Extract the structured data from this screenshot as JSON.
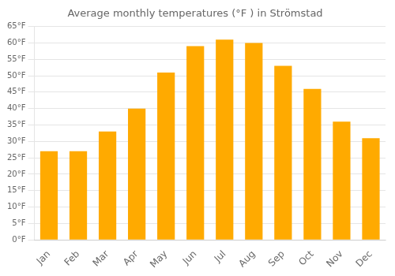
{
  "chart_data": {
    "type": "bar",
    "title": "Average monthly temperatures (°F ) in Strömstad",
    "categories": [
      "Jan",
      "Feb",
      "Mar",
      "Apr",
      "May",
      "Jun",
      "Jul",
      "Aug",
      "Sep",
      "Oct",
      "Nov",
      "Dec"
    ],
    "values": [
      27,
      27,
      33,
      40,
      51,
      59,
      61,
      60,
      53,
      46,
      36,
      31
    ],
    "color": "#FFAA00",
    "ylim": [
      0,
      65
    ],
    "yticks": [
      {
        "value": 0,
        "label": "0°F"
      },
      {
        "value": 5,
        "label": "5°F"
      },
      {
        "value": 10,
        "label": "10°F"
      },
      {
        "value": 15,
        "label": "15°F"
      },
      {
        "value": 20,
        "label": "20°F"
      },
      {
        "value": 25,
        "label": "25°F"
      },
      {
        "value": 30,
        "label": "30°F"
      },
      {
        "value": 35,
        "label": "35°F"
      },
      {
        "value": 40,
        "label": "40°F"
      },
      {
        "value": 45,
        "label": "45°F"
      },
      {
        "value": 50,
        "label": "50°F"
      },
      {
        "value": 55,
        "label": "55°F"
      },
      {
        "value": 60,
        "label": "60°F"
      },
      {
        "value": 65,
        "label": "65°F"
      }
    ],
    "grid": true
  }
}
